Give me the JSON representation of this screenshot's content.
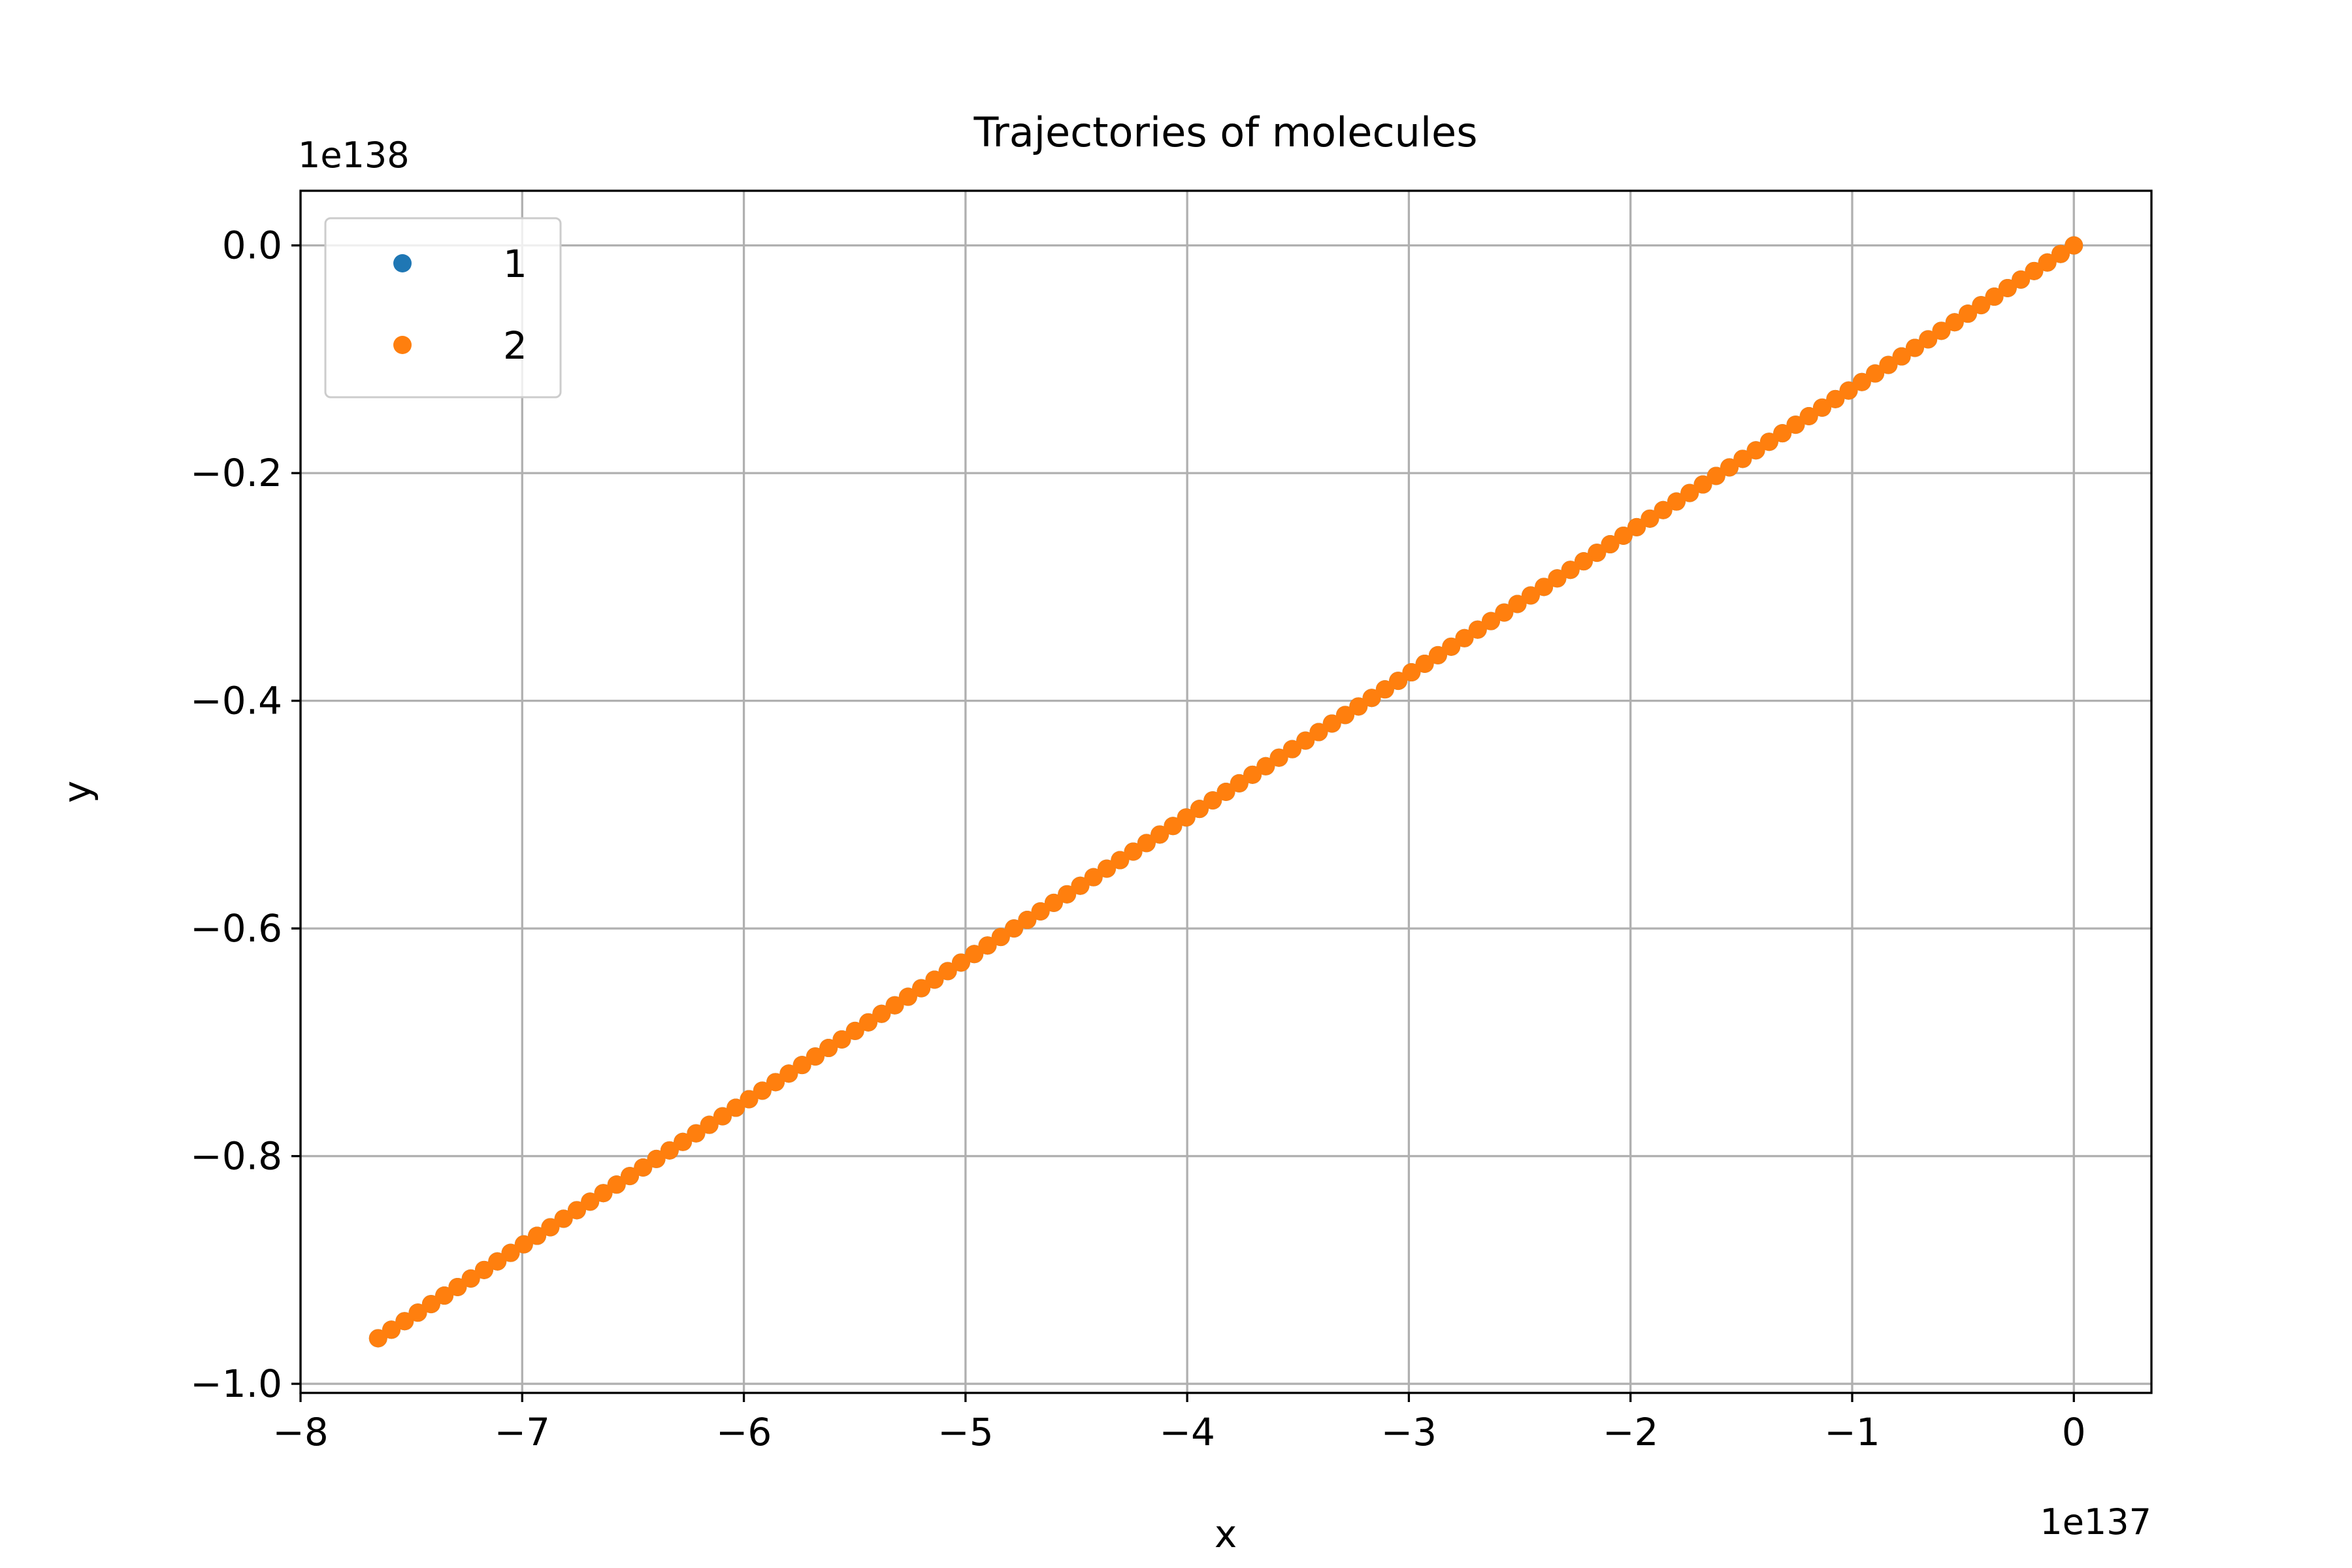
{
  "chart_data": {
    "type": "scatter",
    "title": "Trajectories of molecules",
    "xlabel": "x",
    "ylabel": "y",
    "x_offset_label": "1e137",
    "y_offset_label": "1e138",
    "xlim": [
      -8.0,
      0.35
    ],
    "ylim": [
      -1.008,
      0.048
    ],
    "x_ticks": [
      -8,
      -7,
      -6,
      -5,
      -4,
      -3,
      -2,
      -1,
      0
    ],
    "x_tick_labels": [
      "−8",
      "−7",
      "−6",
      "−5",
      "−4",
      "−3",
      "−2",
      "−1",
      "0"
    ],
    "y_ticks": [
      0.0,
      -0.2,
      -0.4,
      -0.6,
      -0.8,
      -1.0
    ],
    "y_tick_labels": [
      "0.0",
      "−0.2",
      "−0.4",
      "−0.6",
      "−0.8",
      "−1.0"
    ],
    "grid": true,
    "legend_position": "top-left",
    "series": [
      {
        "name": "1",
        "color": "#1f77b4",
        "x_start": 0.0,
        "x_end": -7.65,
        "y_start": 0.0,
        "y_end": -0.96,
        "n_points": 129
      },
      {
        "name": "2",
        "color": "#ff7f0e",
        "x_start": 0.0,
        "x_end": -7.65,
        "y_start": 0.0,
        "y_end": -0.96,
        "n_points": 129
      }
    ]
  }
}
